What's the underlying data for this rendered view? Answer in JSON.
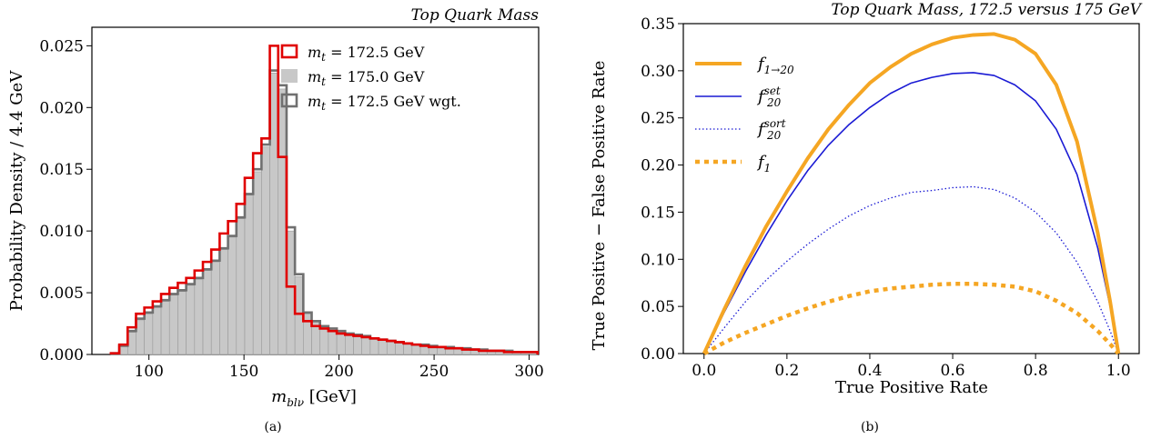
{
  "panels": [
    {
      "title": "Top Quark Mass",
      "xlabel_main": "m",
      "xlabel_sub": "blν",
      "xlabel_unit": " [GeV]",
      "ylabel": "Probability Density / 4.4 GeV",
      "caption": "(a)",
      "legend": [
        {
          "math": "m",
          "sub": "t",
          "text": " = 172.5 GeV",
          "color": "#e00000",
          "kind": "outline"
        },
        {
          "math": "m",
          "sub": "t",
          "text": " = 175.0 GeV",
          "color": "#c8c8c8",
          "kind": "fill"
        },
        {
          "math": "m",
          "sub": "t",
          "text": " = 172.5 GeV wgt.",
          "color": "#707070",
          "kind": "outline"
        }
      ],
      "x_ticks": [
        "100",
        "150",
        "200",
        "250",
        "300"
      ],
      "y_ticks": [
        "0.000",
        "0.005",
        "0.010",
        "0.015",
        "0.020",
        "0.025"
      ]
    },
    {
      "title": "Top Quark Mass, 172.5 versus 175 GeV",
      "xlabel": "True Positive Rate",
      "ylabel": "True Positive − False Positive Rate",
      "caption": "(b)",
      "legend": [
        {
          "math": "f",
          "sub": "1→20",
          "sup": "",
          "color": "#f5a623",
          "style": "solid-thick"
        },
        {
          "math": "f",
          "sub": "20",
          "sup": "set",
          "color": "#1a1ad4",
          "style": "solid"
        },
        {
          "math": "f",
          "sub": "20",
          "sup": "sort",
          "color": "#1a1ad4",
          "style": "dotted"
        },
        {
          "math": "f",
          "sub": "1",
          "sup": "",
          "color": "#f5a623",
          "style": "dotted-thick"
        }
      ],
      "x_ticks": [
        "0.0",
        "0.2",
        "0.4",
        "0.6",
        "0.8",
        "1.0"
      ],
      "y_ticks": [
        "0.00",
        "0.05",
        "0.10",
        "0.15",
        "0.20",
        "0.25",
        "0.30",
        "0.35"
      ]
    }
  ],
  "chart_data": [
    {
      "type": "bar",
      "title": "Top Quark Mass",
      "xlabel": "m_blν [GeV]",
      "ylabel": "Probability Density / 4.4 GeV",
      "xlim": [
        70,
        305
      ],
      "ylim": [
        0,
        0.0265
      ],
      "bin_start": 80,
      "bin_width": 4.4,
      "legend_position": "top-right",
      "series": [
        {
          "name": "m_t = 172.5 GeV",
          "style": "step",
          "color": "#e00000",
          "values": [
            0.0001,
            0.0008,
            0.0022,
            0.0033,
            0.0038,
            0.0043,
            0.0049,
            0.0054,
            0.0058,
            0.0062,
            0.0068,
            0.0075,
            0.0085,
            0.0098,
            0.0108,
            0.0122,
            0.0143,
            0.0163,
            0.0175,
            0.025,
            0.016,
            0.0055,
            0.0033,
            0.0027,
            0.0023,
            0.0021,
            0.0019,
            0.0017,
            0.0016,
            0.0015,
            0.0014,
            0.0013,
            0.0012,
            0.0011,
            0.001,
            0.0009,
            0.0008,
            0.0007,
            0.0006,
            0.0006,
            0.0005,
            0.0005,
            0.0004,
            0.0004,
            0.0003,
            0.0003,
            0.0003,
            0.0002,
            0.0002,
            0.0002,
            0.0002
          ]
        },
        {
          "name": "m_t = 175.0 GeV",
          "style": "fill",
          "color": "#c8c8c8",
          "values": [
            0.0001,
            0.0007,
            0.0018,
            0.0028,
            0.0033,
            0.0038,
            0.0043,
            0.0048,
            0.0051,
            0.0056,
            0.0061,
            0.0068,
            0.0075,
            0.0085,
            0.0095,
            0.011,
            0.0129,
            0.0148,
            0.0168,
            0.0228,
            0.0215,
            0.01,
            0.0063,
            0.0033,
            0.0027,
            0.0023,
            0.0021,
            0.0019,
            0.0017,
            0.0016,
            0.0015,
            0.0013,
            0.0012,
            0.0011,
            0.001,
            0.0009,
            0.0008,
            0.0008,
            0.0007,
            0.0006,
            0.0006,
            0.0005,
            0.0005,
            0.0004,
            0.0004,
            0.0003,
            0.0003,
            0.0003,
            0.0002,
            0.0002,
            0.0002
          ]
        },
        {
          "name": "m_t = 172.5 GeV wgt.",
          "style": "step",
          "color": "#707070",
          "values": [
            0.0001,
            0.0007,
            0.0019,
            0.0029,
            0.0034,
            0.0039,
            0.0044,
            0.0049,
            0.0052,
            0.0057,
            0.0062,
            0.0069,
            0.0076,
            0.0086,
            0.0096,
            0.0111,
            0.013,
            0.015,
            0.017,
            0.023,
            0.0218,
            0.0103,
            0.0065,
            0.0034,
            0.0027,
            0.0023,
            0.0021,
            0.0019,
            0.0017,
            0.0016,
            0.0015,
            0.0013,
            0.0012,
            0.0011,
            0.001,
            0.0009,
            0.0008,
            0.0008,
            0.0007,
            0.0006,
            0.0006,
            0.0005,
            0.0005,
            0.0004,
            0.0004,
            0.0003,
            0.0003,
            0.0003,
            0.0002,
            0.0002,
            0.0002
          ]
        }
      ]
    },
    {
      "type": "line",
      "title": "Top Quark Mass, 172.5 versus 175 GeV",
      "xlabel": "True Positive Rate",
      "ylabel": "True Positive − False Positive Rate",
      "xlim": [
        -0.05,
        1.05
      ],
      "ylim": [
        0,
        0.35
      ],
      "legend_position": "top-left",
      "series": [
        {
          "name": "f_{1→20}",
          "color": "#f5a623",
          "style": "solid-thick",
          "x": [
            0,
            0.05,
            0.1,
            0.15,
            0.2,
            0.25,
            0.3,
            0.35,
            0.4,
            0.45,
            0.5,
            0.55,
            0.6,
            0.65,
            0.7,
            0.75,
            0.8,
            0.85,
            0.9,
            0.95,
            0.98,
            1.0
          ],
          "y": [
            0,
            0.048,
            0.093,
            0.135,
            0.172,
            0.207,
            0.238,
            0.264,
            0.287,
            0.304,
            0.318,
            0.328,
            0.335,
            0.338,
            0.339,
            0.333,
            0.318,
            0.285,
            0.225,
            0.128,
            0.055,
            0
          ]
        },
        {
          "name": "f_{20}^{set}",
          "color": "#1a1ad4",
          "style": "solid",
          "x": [
            0,
            0.05,
            0.1,
            0.15,
            0.2,
            0.25,
            0.3,
            0.35,
            0.4,
            0.45,
            0.5,
            0.55,
            0.6,
            0.65,
            0.7,
            0.75,
            0.8,
            0.85,
            0.9,
            0.95,
            0.98,
            1.0
          ],
          "y": [
            0,
            0.045,
            0.087,
            0.126,
            0.162,
            0.194,
            0.221,
            0.243,
            0.261,
            0.276,
            0.287,
            0.293,
            0.297,
            0.298,
            0.295,
            0.285,
            0.268,
            0.238,
            0.19,
            0.112,
            0.05,
            0
          ]
        },
        {
          "name": "f_{20}^{sort}",
          "color": "#1a1ad4",
          "style": "dotted",
          "x": [
            0,
            0.05,
            0.1,
            0.15,
            0.2,
            0.25,
            0.3,
            0.35,
            0.4,
            0.45,
            0.5,
            0.55,
            0.6,
            0.65,
            0.7,
            0.75,
            0.8,
            0.85,
            0.9,
            0.95,
            0.98,
            1.0
          ],
          "y": [
            0,
            0.028,
            0.055,
            0.078,
            0.098,
            0.116,
            0.132,
            0.146,
            0.157,
            0.165,
            0.171,
            0.173,
            0.176,
            0.177,
            0.174,
            0.165,
            0.15,
            0.128,
            0.097,
            0.055,
            0.024,
            0
          ]
        },
        {
          "name": "f_{1}",
          "color": "#f5a623",
          "style": "dotted-thick",
          "x": [
            0,
            0.05,
            0.1,
            0.15,
            0.2,
            0.25,
            0.3,
            0.35,
            0.4,
            0.45,
            0.5,
            0.55,
            0.6,
            0.65,
            0.7,
            0.75,
            0.8,
            0.85,
            0.9,
            0.95,
            0.98,
            1.0
          ],
          "y": [
            0,
            0.012,
            0.022,
            0.031,
            0.04,
            0.048,
            0.055,
            0.061,
            0.066,
            0.069,
            0.071,
            0.073,
            0.074,
            0.074,
            0.073,
            0.071,
            0.066,
            0.056,
            0.043,
            0.024,
            0.01,
            0
          ]
        }
      ]
    }
  ]
}
